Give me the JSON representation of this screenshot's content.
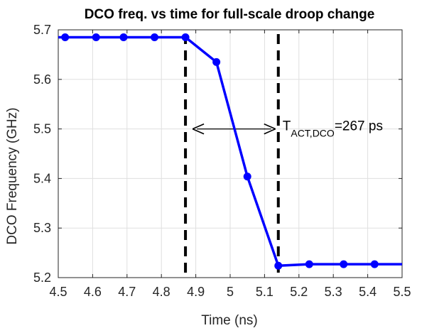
{
  "chart_data": {
    "type": "line",
    "title": "DCO freq. vs time for full-scale droop change",
    "xlabel": "Time (ns)",
    "ylabel": "DCO Frequency (GHz)",
    "xlim": [
      4.5,
      5.5
    ],
    "ylim": [
      5.2,
      5.7
    ],
    "xticks": [
      "4.5",
      "4.6",
      "4.7",
      "4.8",
      "4.9",
      "5",
      "5.1",
      "5.2",
      "5.3",
      "5.4",
      "5.5"
    ],
    "yticks": [
      "5.2",
      "5.3",
      "5.4",
      "5.5",
      "5.6",
      "5.7"
    ],
    "grid": true,
    "series": [
      {
        "color": "#0000ff",
        "marker": "circle",
        "x": [
          4.5,
          4.52,
          4.61,
          4.69,
          4.78,
          4.87,
          4.96,
          5.05,
          5.14,
          5.23,
          5.33,
          5.42,
          5.5
        ],
        "y": [
          5.685,
          5.685,
          5.685,
          5.685,
          5.685,
          5.685,
          5.635,
          5.404,
          5.224,
          5.227,
          5.227,
          5.227,
          5.227
        ],
        "markers_at": [
          4.52,
          4.61,
          4.69,
          4.78,
          4.87,
          4.96,
          5.05,
          5.14,
          5.23,
          5.33,
          5.42
        ]
      }
    ],
    "vlines": [
      4.87,
      5.14
    ],
    "arrow": {
      "x_start": 4.87,
      "x_end": 5.14,
      "y": 5.5
    },
    "annotation": {
      "main": "T",
      "sub": "ACT,DCO",
      "value": "=267 ps",
      "x": 5.14,
      "y": 5.5
    }
  }
}
